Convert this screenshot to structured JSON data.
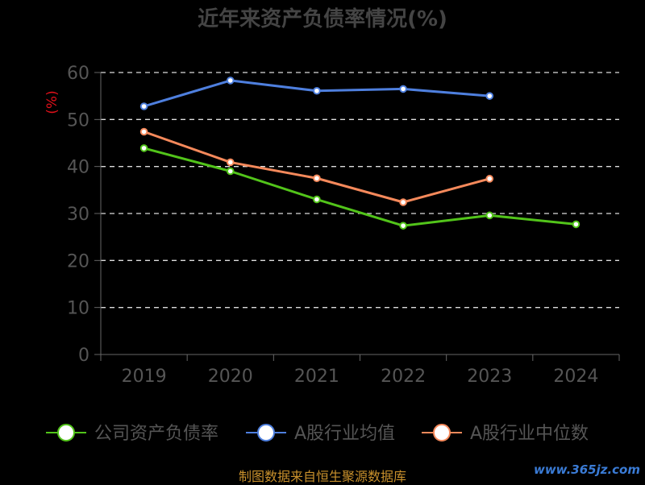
{
  "chart_data": {
    "type": "line",
    "title": "近年来资产负债率情况(%)",
    "ylabel": "(%)",
    "categories": [
      "2019",
      "2020",
      "2021",
      "2022",
      "2023",
      "2024"
    ],
    "ylim": [
      0,
      60
    ],
    "yticks": [
      0,
      10,
      20,
      30,
      40,
      50,
      60
    ],
    "grid": true,
    "legend_position": "bottom",
    "series": [
      {
        "name": "公司资产负债率",
        "color": "#52c41a",
        "values": [
          43.9,
          39.0,
          33.0,
          27.4,
          29.6,
          27.7
        ]
      },
      {
        "name": "A股行业均值",
        "color": "#4e7fde",
        "values": [
          52.8,
          58.3,
          56.1,
          56.5,
          55.0,
          null
        ]
      },
      {
        "name": "A股行业中位数",
        "color": "#f5895b",
        "values": [
          47.4,
          40.9,
          37.5,
          32.4,
          37.4,
          null
        ]
      }
    ]
  },
  "footer": {
    "source": "制图数据来自恒生聚源数据库",
    "watermark": "www.365jz.com"
  }
}
